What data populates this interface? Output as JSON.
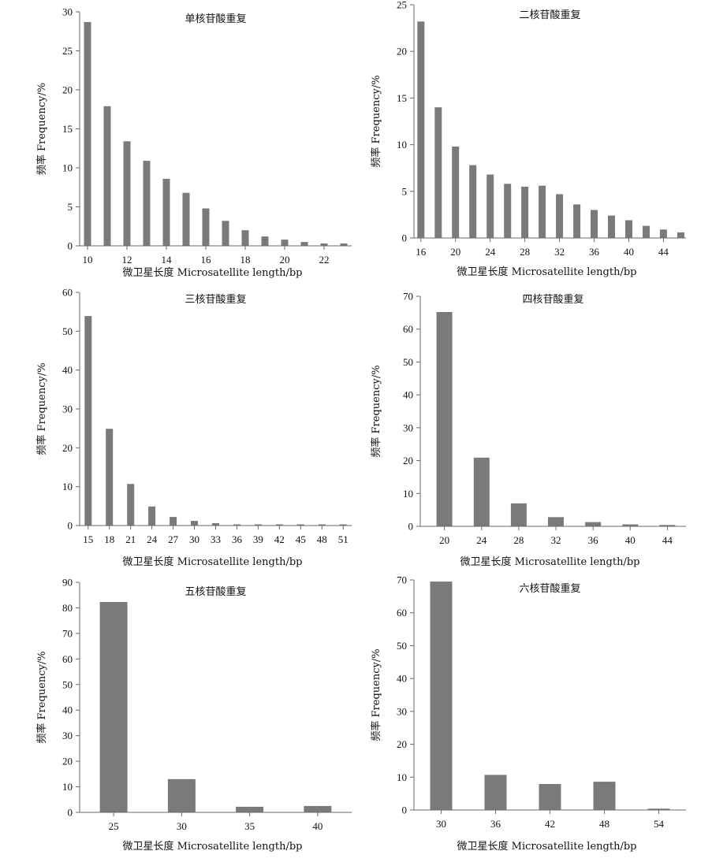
{
  "colors": {
    "bar": "#7a7a7a",
    "axis": "#6a6a6a",
    "text": "#111111"
  },
  "chart_data": [
    {
      "type": "bar",
      "title": "单核苷酸重复",
      "xlabel": "微卫星长度 Microsatellite length/bp",
      "ylabel": "频率 Frequency/%",
      "x": [
        10,
        11,
        12,
        13,
        14,
        15,
        16,
        17,
        18,
        19,
        20,
        21,
        22,
        23
      ],
      "values": [
        28.7,
        17.9,
        13.4,
        10.9,
        8.6,
        6.8,
        4.8,
        3.2,
        2.0,
        1.2,
        0.8,
        0.5,
        0.3,
        0.3
      ],
      "xticks": [
        10,
        12,
        14,
        16,
        18,
        20,
        22
      ],
      "yticks": [
        0,
        5,
        10,
        15,
        20,
        25,
        30
      ],
      "ylim": [
        0,
        30
      ],
      "xlim": [
        9.6,
        23.4
      ]
    },
    {
      "type": "bar",
      "title": "二核苷酸重复",
      "xlabel": "微卫星长度 Microsatellite length/bp",
      "ylabel": "频率 Frequency/%",
      "x": [
        16,
        18,
        20,
        22,
        24,
        26,
        28,
        30,
        32,
        34,
        36,
        38,
        40,
        42,
        44,
        46
      ],
      "values": [
        23.2,
        14.0,
        9.8,
        7.8,
        6.8,
        5.8,
        5.5,
        5.6,
        4.7,
        3.6,
        3.0,
        2.4,
        1.9,
        1.3,
        0.9,
        0.6
      ],
      "xticks": [
        16,
        20,
        24,
        28,
        32,
        36,
        40,
        44
      ],
      "yticks": [
        0,
        5,
        10,
        15,
        20,
        25
      ],
      "ylim": [
        0,
        25
      ],
      "xlim": [
        15.2,
        46.6
      ]
    },
    {
      "type": "bar",
      "title": "三核苷酸重复",
      "xlabel": "微卫星长度 Microsatellite length/bp",
      "ylabel": "频率 Frequency/%",
      "x": [
        15,
        18,
        21,
        24,
        27,
        30,
        33,
        36,
        39,
        42,
        45,
        48,
        51
      ],
      "values": [
        53.9,
        24.9,
        10.7,
        4.9,
        2.2,
        1.2,
        0.6,
        0.3,
        0.3,
        0.3,
        0.3,
        0.3,
        0.3
      ],
      "xticks": [
        15,
        18,
        21,
        24,
        27,
        30,
        33,
        36,
        39,
        42,
        45,
        48,
        51
      ],
      "yticks": [
        0,
        10,
        20,
        30,
        40,
        50,
        60
      ],
      "ylim": [
        0,
        60
      ],
      "xlim": [
        13.8,
        52.2
      ]
    },
    {
      "type": "bar",
      "title": "四核苷酸重复",
      "xlabel": "微卫星长度 Microsatellite length/bp",
      "ylabel": "频率 Frequency/%",
      "x": [
        20,
        24,
        28,
        32,
        36,
        40,
        44
      ],
      "values": [
        65.2,
        20.9,
        7.0,
        2.8,
        1.3,
        0.6,
        0.4
      ],
      "xticks": [
        20,
        24,
        28,
        32,
        36,
        40,
        44
      ],
      "yticks": [
        0,
        10,
        20,
        30,
        40,
        50,
        60,
        70
      ],
      "ylim": [
        0,
        70
      ],
      "xlim": [
        17.4,
        46.0
      ]
    },
    {
      "type": "bar",
      "title": "五核苷酸重复",
      "xlabel": "微卫星长度 Microsatellite length/bp",
      "ylabel": "频率 Frequency/%",
      "x": [
        25,
        30,
        35,
        40
      ],
      "values": [
        82.3,
        13.0,
        2.2,
        2.5
      ],
      "xticks": [
        25,
        30,
        35,
        40
      ],
      "yticks": [
        0,
        10,
        20,
        30,
        40,
        50,
        60,
        70,
        80,
        90
      ],
      "ylim": [
        0,
        90
      ],
      "xlim": [
        22.5,
        42.5
      ]
    },
    {
      "type": "bar",
      "title": "六核苷酸重复",
      "xlabel": "微卫星长度 Microsatellite length/bp",
      "ylabel": "频率 Frequency/%",
      "x": [
        30,
        36,
        42,
        48,
        54
      ],
      "values": [
        69.5,
        10.7,
        7.9,
        8.6,
        0.4
      ],
      "xticks": [
        30,
        36,
        42,
        48,
        54
      ],
      "yticks": [
        0,
        10,
        20,
        30,
        40,
        50,
        60,
        70
      ],
      "ylim": [
        0,
        70
      ],
      "xlim": [
        27.0,
        57.0
      ]
    }
  ]
}
